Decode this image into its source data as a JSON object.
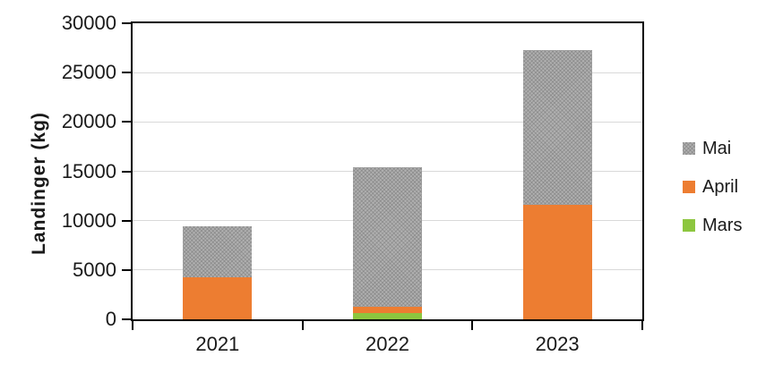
{
  "chart_data": {
    "type": "bar",
    "stacked": true,
    "title": "",
    "xlabel": "",
    "ylabel": "Landinger (kg)",
    "categories": [
      "2021",
      "2022",
      "2023"
    ],
    "series": [
      {
        "name": "Mars",
        "color": "#8dc63f",
        "pattern": null,
        "values": [
          0,
          600,
          0
        ]
      },
      {
        "name": "April",
        "color": "#ed7d31",
        "pattern": null,
        "values": [
          4300,
          650,
          11600
        ]
      },
      {
        "name": "Mai",
        "color": "#ababab",
        "pattern": "dotted-hatch",
        "values": [
          5150,
          14200,
          15700
        ]
      }
    ],
    "totals": [
      9450,
      15450,
      27300
    ],
    "y_axis": {
      "min": 0,
      "max": 30000,
      "step": 5000,
      "ticks": [
        0,
        5000,
        10000,
        15000,
        20000,
        25000,
        30000
      ]
    },
    "x_axis": {
      "tick_labels": [
        "2021",
        "2022",
        "2023"
      ]
    },
    "grid": true,
    "gridline_color": "#d9d9d9",
    "axis_color": "#000000",
    "legend": {
      "position": "right",
      "order": [
        "Mai",
        "April",
        "Mars"
      ]
    }
  }
}
